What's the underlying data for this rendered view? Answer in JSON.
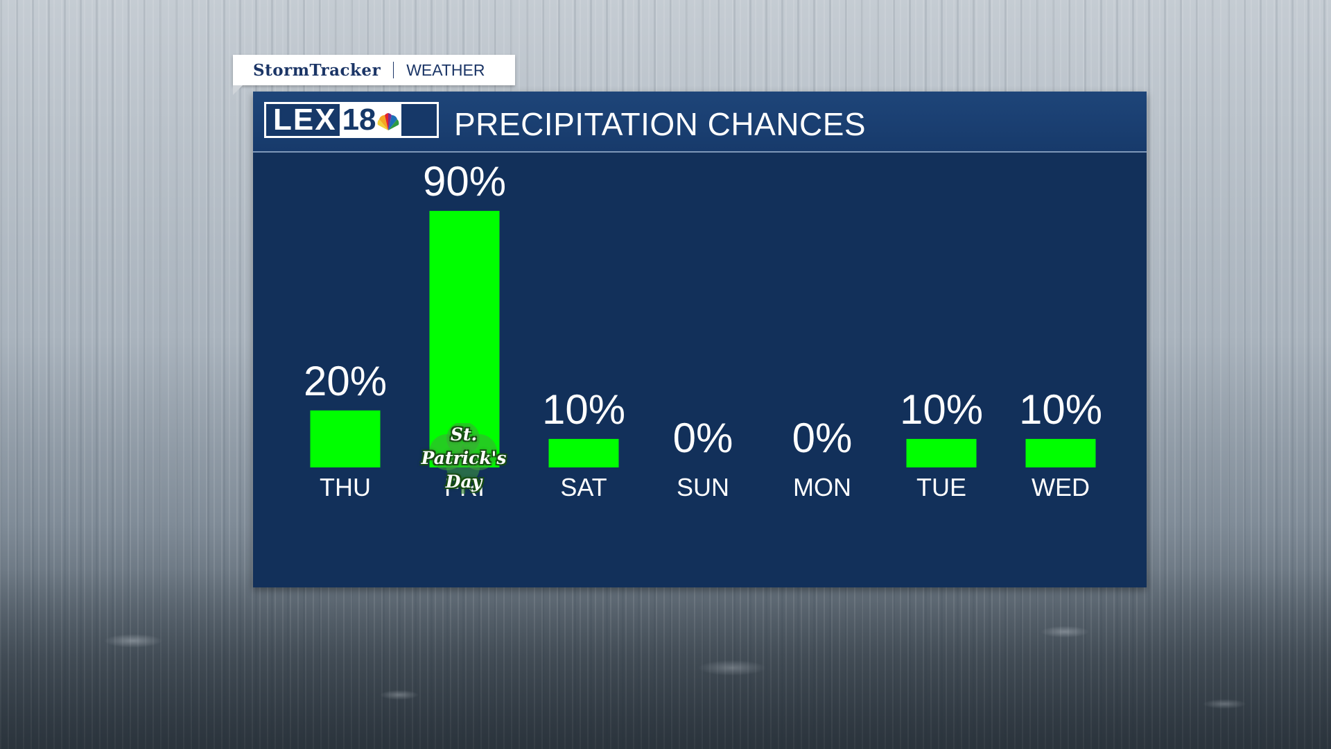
{
  "header_tag": {
    "brand": "StormTracker",
    "section": "WEATHER"
  },
  "panel": {
    "logo_text": "LEX",
    "logo_number": "18",
    "title": "PRECIPITATION CHANCES"
  },
  "colors": {
    "bar": "#00ff00",
    "panel_bg": "#12305a",
    "header_bg": "#1b4173",
    "text": "#ffffff"
  },
  "chart_data": {
    "type": "bar",
    "title": "PRECIPITATION CHANCES",
    "categories": [
      "THU",
      "FRI",
      "SAT",
      "SUN",
      "MON",
      "TUE",
      "WED"
    ],
    "values": [
      20,
      90,
      10,
      0,
      0,
      10,
      10
    ],
    "value_labels": [
      "20%",
      "90%",
      "10%",
      "0%",
      "0%",
      "10%",
      "10%"
    ],
    "ylim": [
      0,
      100
    ],
    "grid": false,
    "annotations": [
      {
        "category": "FRI",
        "text": "St. Patrick's Day"
      }
    ]
  }
}
